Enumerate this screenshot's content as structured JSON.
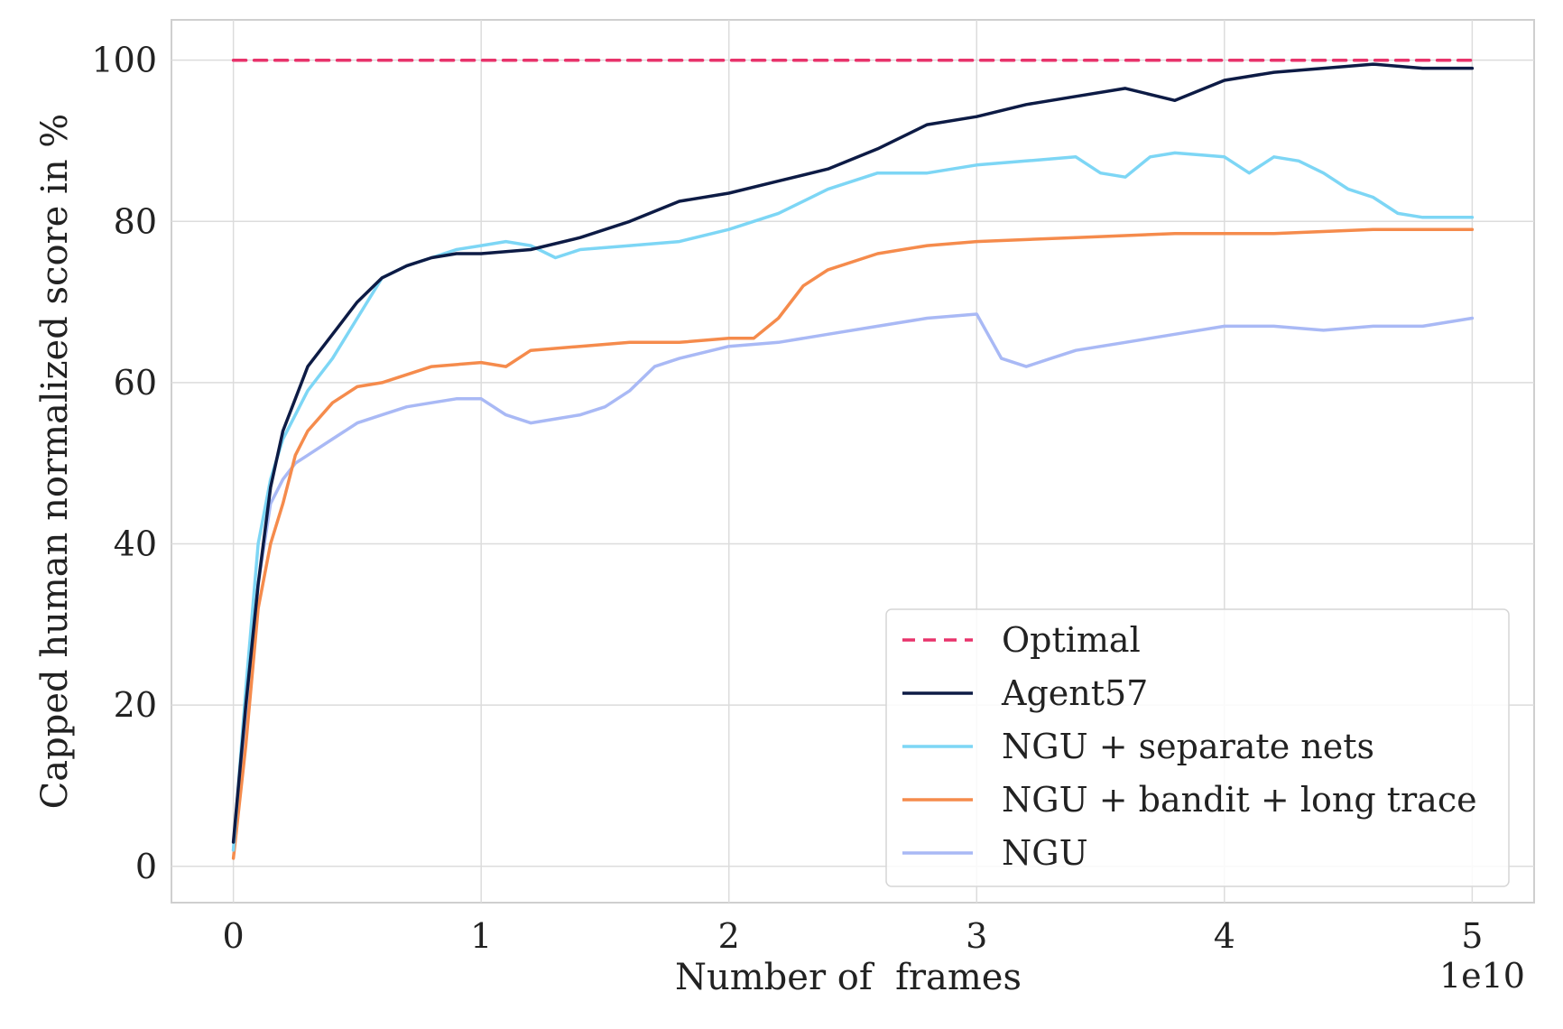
{
  "chart_data": {
    "type": "line",
    "title": "",
    "xlabel": "Number of  frames",
    "ylabel": "Capped human normalized score in %",
    "x_offset_label": "1e10",
    "xlim": [
      -0.25,
      5.25
    ],
    "ylim": [
      -4.5,
      105
    ],
    "xticks": [
      0,
      1,
      2,
      3,
      4,
      5
    ],
    "xtick_labels": [
      "0",
      "1",
      "2",
      "3",
      "4",
      "5"
    ],
    "yticks": [
      0,
      20,
      40,
      60,
      80,
      100
    ],
    "ytick_labels": [
      "0",
      "20",
      "40",
      "60",
      "80",
      "100"
    ],
    "grid": true,
    "legend_position": "lower-right",
    "series": [
      {
        "name": "Optimal",
        "color": "#e8336b",
        "dashed": true,
        "x": [
          0,
          5
        ],
        "values": [
          100,
          100
        ]
      },
      {
        "name": "Agent57",
        "color": "#0d1b45",
        "dashed": false,
        "x": [
          0,
          0.05,
          0.1,
          0.15,
          0.2,
          0.25,
          0.3,
          0.4,
          0.5,
          0.6,
          0.7,
          0.8,
          0.9,
          1.0,
          1.2,
          1.4,
          1.6,
          1.8,
          2.0,
          2.2,
          2.4,
          2.6,
          2.8,
          3.0,
          3.2,
          3.4,
          3.6,
          3.8,
          4.0,
          4.2,
          4.4,
          4.6,
          4.8,
          5.0
        ],
        "values": [
          3,
          20,
          35,
          47,
          54,
          58,
          62,
          66,
          70,
          73,
          74.5,
          75.5,
          76,
          76,
          76.5,
          78,
          80,
          82.5,
          83.5,
          85,
          86.5,
          89,
          92,
          93,
          94.5,
          95.5,
          96.5,
          95,
          97.5,
          98.5,
          99,
          99.5,
          99,
          99
        ]
      },
      {
        "name": "NGU + separate nets",
        "color": "#7dd6f5",
        "dashed": false,
        "x": [
          0,
          0.05,
          0.1,
          0.15,
          0.2,
          0.25,
          0.3,
          0.4,
          0.5,
          0.6,
          0.7,
          0.8,
          0.9,
          1.0,
          1.1,
          1.2,
          1.3,
          1.4,
          1.6,
          1.8,
          2.0,
          2.2,
          2.4,
          2.6,
          2.8,
          3.0,
          3.2,
          3.4,
          3.5,
          3.6,
          3.7,
          3.8,
          4.0,
          4.1,
          4.2,
          4.3,
          4.4,
          4.5,
          4.6,
          4.7,
          4.8,
          4.9,
          5.0
        ],
        "values": [
          2,
          22,
          40,
          48,
          53,
          56,
          59,
          63,
          68,
          73,
          74.5,
          75.5,
          76.5,
          77,
          77.5,
          77,
          75.5,
          76.5,
          77,
          77.5,
          79,
          81,
          84,
          86,
          86,
          87,
          87.5,
          88,
          86,
          85.5,
          88,
          88.5,
          88,
          86,
          88,
          87.5,
          86,
          84,
          83,
          81,
          80.5,
          80.5,
          80.5
        ]
      },
      {
        "name": "NGU + bandit + long trace",
        "color": "#f58b4c",
        "dashed": false,
        "x": [
          0,
          0.05,
          0.1,
          0.15,
          0.2,
          0.25,
          0.3,
          0.4,
          0.5,
          0.6,
          0.8,
          1.0,
          1.1,
          1.2,
          1.4,
          1.6,
          1.8,
          2.0,
          2.1,
          2.2,
          2.3,
          2.4,
          2.6,
          2.8,
          3.0,
          3.4,
          3.8,
          4.2,
          4.6,
          5.0
        ],
        "values": [
          1,
          15,
          32,
          40,
          45,
          51,
          54,
          57.5,
          59.5,
          60,
          62,
          62.5,
          62,
          64,
          64.5,
          65,
          65,
          65.5,
          65.5,
          68,
          72,
          74,
          76,
          77,
          77.5,
          78,
          78.5,
          78.5,
          79,
          79
        ]
      },
      {
        "name": "NGU",
        "color": "#a9b9f5",
        "dashed": false,
        "x": [
          0,
          0.05,
          0.1,
          0.15,
          0.2,
          0.25,
          0.3,
          0.4,
          0.5,
          0.6,
          0.7,
          0.8,
          0.9,
          1.0,
          1.1,
          1.2,
          1.3,
          1.4,
          1.5,
          1.6,
          1.7,
          1.8,
          2.0,
          2.2,
          2.4,
          2.6,
          2.8,
          3.0,
          3.1,
          3.2,
          3.3,
          3.4,
          3.6,
          3.8,
          4.0,
          4.2,
          4.4,
          4.6,
          4.8,
          5.0
        ],
        "values": [
          2,
          18,
          35,
          45,
          48,
          50,
          51,
          53,
          55,
          56,
          57,
          57.5,
          58,
          58,
          56,
          55,
          55.5,
          56,
          57,
          59,
          62,
          63,
          64.5,
          65,
          66,
          67,
          68,
          68.5,
          63,
          62,
          63,
          64,
          65,
          66,
          67,
          67,
          66.5,
          67,
          67,
          68
        ]
      }
    ]
  }
}
